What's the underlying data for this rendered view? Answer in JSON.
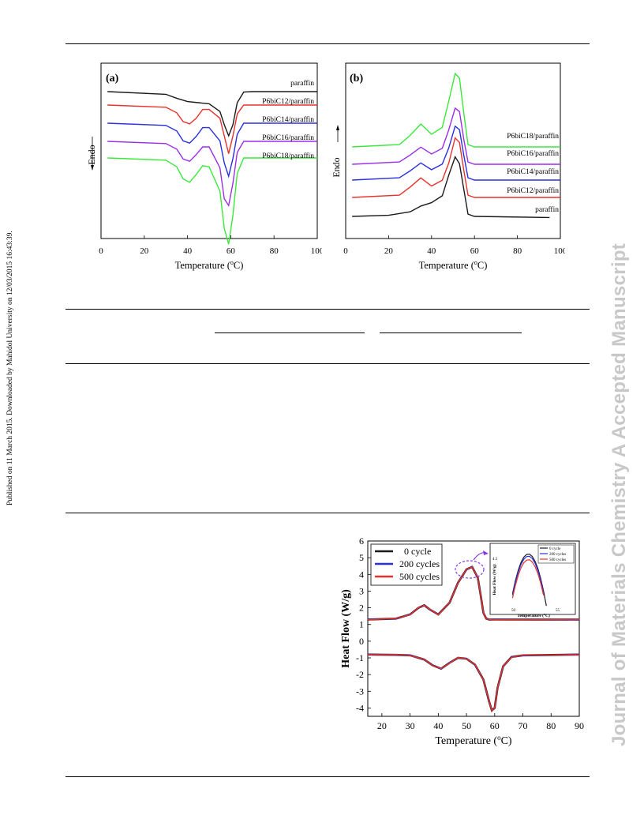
{
  "side_note": "Published on 11 March 2015. Downloaded by Mahidol University on 12/03/2015 16:43:39.",
  "watermark": "Journal of Materials Chemistry A Accepted Manuscript",
  "colors": {
    "black": "#1a1a1a",
    "red": "#e8312b",
    "blue": "#2a2fe0",
    "purple": "#9b2fe8",
    "green": "#3ae83a"
  },
  "chart_data": [
    {
      "type": "line",
      "panel_label": "(a)",
      "xlabel": "Temperature (°C)",
      "ylabel": "Endo",
      "xlim": [
        0,
        100
      ],
      "xticks": [
        "0",
        "20",
        "40",
        "60",
        "80",
        "100"
      ],
      "series": [
        {
          "name": "paraffin",
          "x": [
            3,
            30,
            35,
            40,
            45,
            50,
            55,
            57,
            59,
            61,
            63,
            66,
            70,
            100
          ],
          "y": [
            0.0,
            -0.12,
            -0.3,
            -0.45,
            -0.5,
            -0.55,
            -0.9,
            -1.5,
            -2.0,
            -1.5,
            -0.5,
            -0.02,
            0.0,
            0.0
          ]
        },
        {
          "name": "P6biC12/paraffin",
          "x": [
            3,
            30,
            35,
            38,
            41,
            44,
            47,
            50,
            55,
            57,
            59,
            61,
            63,
            66,
            70,
            100
          ],
          "y": [
            0.0,
            -0.1,
            -0.35,
            -0.75,
            -0.85,
            -0.6,
            -0.2,
            -0.2,
            -0.6,
            -1.4,
            -2.2,
            -1.4,
            -0.4,
            0.0,
            0.0,
            0.0
          ]
        },
        {
          "name": "P6biC14/paraffin",
          "x": [
            3,
            30,
            35,
            38,
            41,
            44,
            47,
            50,
            55,
            57,
            59,
            61,
            63,
            66,
            70,
            100
          ],
          "y": [
            0.0,
            -0.1,
            -0.35,
            -0.8,
            -0.9,
            -0.6,
            -0.2,
            -0.2,
            -0.8,
            -1.8,
            -2.4,
            -1.6,
            -0.5,
            0.0,
            0.0,
            0.0
          ]
        },
        {
          "name": "P6biC16/paraffin",
          "x": [
            3,
            30,
            35,
            38,
            41,
            44,
            47,
            50,
            55,
            57,
            59,
            61,
            63,
            66,
            70,
            100
          ],
          "y": [
            0.0,
            -0.1,
            -0.35,
            -0.8,
            -0.9,
            -0.6,
            -0.25,
            -0.25,
            -1.2,
            -2.6,
            -2.9,
            -1.9,
            -0.5,
            0.0,
            0.0,
            0.0
          ]
        },
        {
          "name": "P6biC18/paraffin",
          "x": [
            3,
            30,
            35,
            38,
            41,
            44,
            47,
            50,
            55,
            57,
            59,
            61,
            63,
            66,
            70,
            100
          ],
          "y": [
            0.0,
            -0.1,
            -0.4,
            -0.95,
            -1.1,
            -0.75,
            -0.35,
            -0.4,
            -1.5,
            -3.2,
            -3.9,
            -2.6,
            -0.7,
            0.0,
            0.0,
            0.0
          ]
        }
      ]
    },
    {
      "type": "line",
      "panel_label": "(b)",
      "xlabel": "Temperature (°C)",
      "ylabel": "Endo",
      "xlim": [
        0,
        100
      ],
      "xticks": [
        "0",
        "20",
        "40",
        "60",
        "80",
        "100"
      ],
      "series": [
        {
          "name": "P6biC18/paraffin",
          "x": [
            3,
            25,
            30,
            35,
            40,
            45,
            48,
            51,
            53,
            55,
            57,
            60,
            100
          ],
          "y": [
            0.0,
            0.1,
            0.5,
            1.0,
            0.55,
            0.85,
            2.0,
            3.2,
            3.0,
            1.5,
            0.1,
            0.0,
            0.0
          ]
        },
        {
          "name": "P6biC16/paraffin",
          "x": [
            3,
            25,
            30,
            35,
            40,
            45,
            48,
            51,
            53,
            55,
            57,
            60,
            100
          ],
          "y": [
            0.0,
            0.1,
            0.4,
            0.75,
            0.45,
            0.7,
            1.5,
            2.45,
            2.3,
            1.1,
            0.1,
            0.0,
            0.0
          ]
        },
        {
          "name": "P6biC14/paraffin",
          "x": [
            3,
            25,
            30,
            35,
            40,
            45,
            48,
            51,
            53,
            55,
            57,
            60,
            100
          ],
          "y": [
            0.0,
            0.1,
            0.4,
            0.75,
            0.45,
            0.7,
            1.4,
            2.35,
            2.2,
            1.1,
            0.1,
            0.0,
            0.0
          ]
        },
        {
          "name": "P6biC12/paraffin",
          "x": [
            3,
            25,
            30,
            35,
            40,
            45,
            48,
            51,
            53,
            55,
            57,
            60,
            100
          ],
          "y": [
            0.0,
            0.1,
            0.45,
            0.85,
            0.5,
            0.75,
            1.5,
            2.6,
            2.4,
            1.2,
            0.1,
            0.0,
            0.0
          ]
        },
        {
          "name": "paraffin",
          "x": [
            3,
            20,
            30,
            35,
            40,
            45,
            48,
            51,
            53,
            55,
            57,
            60,
            95
          ],
          "y": [
            0.0,
            0.05,
            0.2,
            0.45,
            0.6,
            0.9,
            1.8,
            2.6,
            2.3,
            1.2,
            0.1,
            0.0,
            -0.05
          ]
        }
      ]
    },
    {
      "type": "line",
      "xlabel": "Temperature (°C)",
      "ylabel": "Heat Flow (W/g)",
      "xlim": [
        15,
        90
      ],
      "ylim": [
        -4.5,
        6
      ],
      "xticks": [
        20,
        30,
        40,
        50,
        60,
        70,
        80,
        90
      ],
      "yticks": [
        -4,
        -3,
        -2,
        -1,
        0,
        1,
        2,
        3,
        4,
        5,
        6
      ],
      "series": [
        {
          "name": "0 cycle",
          "color_key": "black"
        },
        {
          "name": "200 cycles",
          "color_key": "blue"
        },
        {
          "name": "500 cycles",
          "color_key": "red"
        }
      ],
      "heating_curve": {
        "x": [
          15,
          25,
          30,
          33,
          35,
          37,
          40,
          44,
          47,
          50,
          52,
          54,
          55,
          56,
          57,
          58,
          60,
          90
        ],
        "y": [
          1.3,
          1.35,
          1.6,
          2.0,
          2.15,
          1.9,
          1.6,
          2.3,
          3.5,
          4.3,
          4.45,
          3.8,
          2.8,
          1.7,
          1.35,
          1.3,
          1.3,
          1.3
        ]
      },
      "cooling_curve": {
        "x": [
          15,
          25,
          30,
          35,
          38,
          41,
          44,
          47,
          50,
          53,
          56,
          58,
          59,
          60,
          61,
          63,
          66,
          70,
          90
        ],
        "y": [
          -0.8,
          -0.82,
          -0.85,
          -1.1,
          -1.45,
          -1.65,
          -1.3,
          -1.0,
          -1.05,
          -1.4,
          -2.3,
          -3.6,
          -4.15,
          -4.0,
          -2.8,
          -1.5,
          -0.95,
          -0.85,
          -0.8
        ]
      },
      "inset": {
        "ylabel": "Heat Flow (W/g)",
        "xlabel": "Temperature (°C)",
        "xticks": [
          "50",
          "55"
        ],
        "yticks": [
          "4.5"
        ],
        "legend": [
          "0 cycle",
          "200 cycles",
          "500 cycles"
        ]
      }
    }
  ]
}
